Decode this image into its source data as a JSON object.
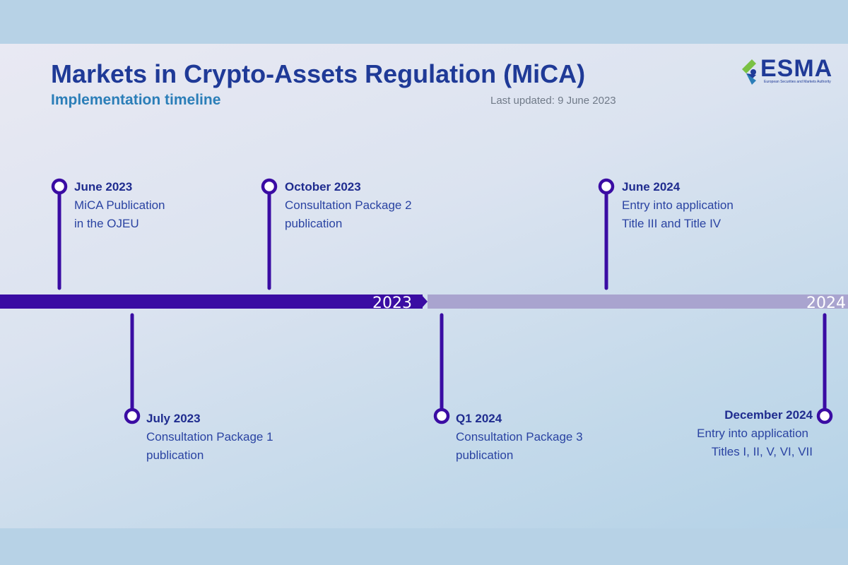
{
  "header": {
    "title": "Markets in Crypto-Assets Regulation (MiCA)",
    "subtitle": "Implementation timeline",
    "last_updated": "Last updated: 9 June 2023"
  },
  "logo": {
    "text": "ESMA",
    "tagline": "European Securities and Markets Authority"
  },
  "timeline": {
    "year_2023": "2023",
    "year_2024": "2024"
  },
  "events": [
    {
      "date": "June 2023",
      "line1": "MiCA Publication",
      "line2": "in the OJEU"
    },
    {
      "date": "July 2023",
      "line1": "Consultation Package 1",
      "line2": "publication"
    },
    {
      "date": "October 2023",
      "line1": "Consultation Package 2",
      "line2": "publication"
    },
    {
      "date": "Q1 2024",
      "line1": "Consultation Package 3",
      "line2": "publication"
    },
    {
      "date": "June 2024",
      "line1": "Entry into application",
      "line2": "Title III and Title IV"
    },
    {
      "date": "December 2024",
      "line1": "Entry into application",
      "line2": "Titles I, II, V, VI, VII"
    }
  ],
  "colors": {
    "dark_bar": "#3a0ca3",
    "light_bar": "#a9a4cf",
    "title": "#1f3a97",
    "subtitle": "#2b7eb8",
    "logo_green": "#7ac143"
  }
}
